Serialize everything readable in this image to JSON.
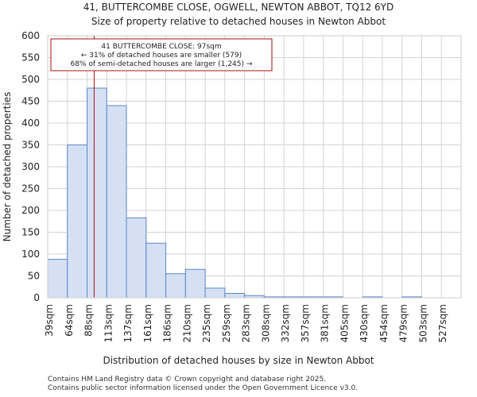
{
  "chart_data": {
    "type": "bar",
    "title": "41, BUTTERCOMBE CLOSE, OGWELL, NEWTON ABBOT, TQ12 6YD",
    "subtitle": "Size of property relative to detached houses in Newton Abbot",
    "xlabel": "Distribution of detached houses by size in Newton Abbot",
    "ylabel": "Number of detached properties",
    "categories": [
      "39sqm",
      "64sqm",
      "88sqm",
      "113sqm",
      "137sqm",
      "161sqm",
      "186sqm",
      "210sqm",
      "235sqm",
      "259sqm",
      "283sqm",
      "308sqm",
      "332sqm",
      "357sqm",
      "381sqm",
      "405sqm",
      "430sqm",
      "454sqm",
      "479sqm",
      "503sqm",
      "527sqm"
    ],
    "values": [
      88,
      350,
      480,
      440,
      183,
      125,
      55,
      65,
      22,
      10,
      5,
      2,
      2,
      2,
      2,
      0,
      2,
      0,
      2,
      0,
      0
    ],
    "ylim": [
      0,
      600
    ],
    "yticks": [
      0,
      50,
      100,
      150,
      200,
      250,
      300,
      350,
      400,
      450,
      500,
      550,
      600
    ],
    "grid": true,
    "bar_color": "#d6e0f5",
    "bar_edge_color": "#5b87c9",
    "marker": {
      "value_sqm": 97,
      "color": "#aa1111",
      "annotation_lines": [
        "41 BUTTERCOMBE CLOSE: 97sqm",
        "← 31% of detached houses are smaller (579)",
        "68% of semi-detached houses are larger (1,245) →"
      ]
    }
  },
  "footer": {
    "line1": "Contains HM Land Registry data © Crown copyright and database right 2025.",
    "line2": "Contains public sector information licensed under the Open Government Licence v3.0."
  }
}
